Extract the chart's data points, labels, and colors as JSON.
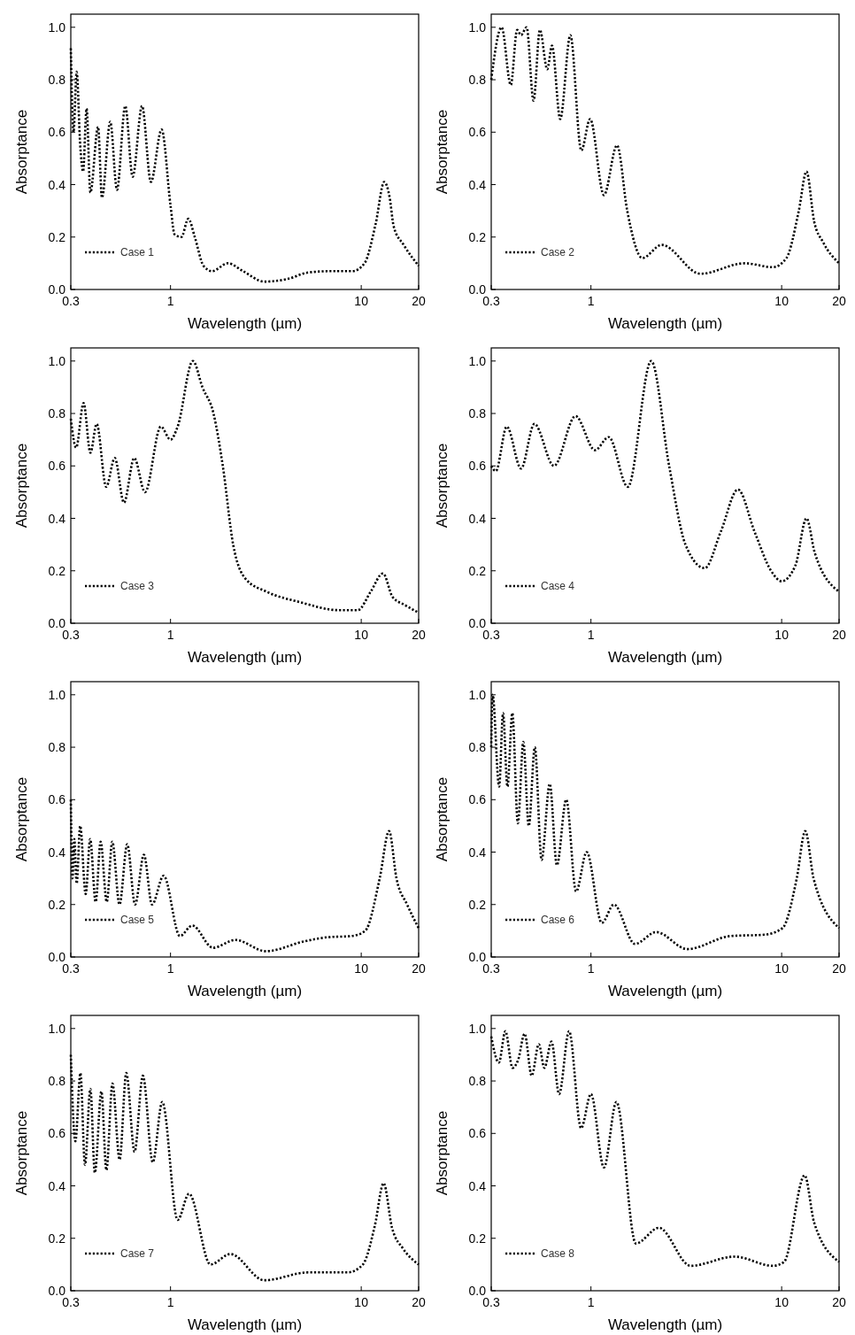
{
  "chart_data": [
    {
      "type": "line",
      "xlabel": "Wavelength (µm)",
      "ylabel": "Absorptance",
      "log": "x",
      "legend": "bottom left",
      "line_style": "dotted",
      "xlim": [
        0.3,
        20
      ],
      "ylim": [
        0,
        1.05
      ],
      "xticks": [
        0.3,
        1,
        10,
        20
      ],
      "yticks": [
        {
          "value": 0,
          "label": "0.0"
        },
        {
          "value": 0.2,
          "label": "0.2"
        },
        {
          "value": 0.4,
          "label": "0.4"
        },
        {
          "value": 0.6,
          "label": "0.6"
        },
        {
          "value": 0.8,
          "label": "0.8"
        },
        {
          "value": 1,
          "label": "1.0"
        }
      ],
      "x": [
        0.3,
        0.31,
        0.322,
        0.336,
        0.348,
        0.363,
        0.38,
        0.417,
        0.437,
        0.483,
        0.524,
        0.579,
        0.633,
        0.709,
        0.789,
        0.898,
        1.0,
        1.05,
        1.14,
        1.24,
        1.34,
        1.49,
        1.65,
        2.0,
        2.4,
        3.1,
        4.1,
        5.3,
        7.0,
        9.0,
        10.4,
        11.9,
        13.2,
        14.1,
        14.8,
        16.7,
        20
      ],
      "series": [
        {
          "name": "Case 1",
          "color": "#000000",
          "values": [
            0.92,
            0.6,
            0.83,
            0.55,
            0.45,
            0.69,
            0.37,
            0.62,
            0.35,
            0.64,
            0.38,
            0.7,
            0.43,
            0.7,
            0.41,
            0.61,
            0.32,
            0.21,
            0.2,
            0.27,
            0.2,
            0.09,
            0.07,
            0.1,
            0.07,
            0.03,
            0.04,
            0.065,
            0.07,
            0.07,
            0.1,
            0.25,
            0.41,
            0.35,
            0.24,
            0.17,
            0.09
          ]
        }
      ]
    },
    {
      "type": "line",
      "xlabel": "Wavelength (µm)",
      "ylabel": "Absorptance",
      "log": "x",
      "legend": "bottom left",
      "line_style": "dotted",
      "xlim": [
        0.3,
        20
      ],
      "ylim": [
        0,
        1.05
      ],
      "xticks": [
        0.3,
        1,
        10,
        20
      ],
      "yticks": [
        {
          "value": 0,
          "label": "0.0"
        },
        {
          "value": 0.2,
          "label": "0.2"
        },
        {
          "value": 0.4,
          "label": "0.4"
        },
        {
          "value": 0.6,
          "label": "0.6"
        },
        {
          "value": 0.8,
          "label": "0.8"
        },
        {
          "value": 1,
          "label": "1.0"
        }
      ],
      "x": [
        0.3,
        0.34,
        0.38,
        0.41,
        0.43,
        0.46,
        0.5,
        0.54,
        0.59,
        0.625,
        0.69,
        0.78,
        0.89,
        0.99,
        1.17,
        1.37,
        1.55,
        1.86,
        2.35,
        3.75,
        6.4,
        9.0,
        10.6,
        12.3,
        13.5,
        14.8,
        16.5,
        20
      ],
      "series": [
        {
          "name": "Case 2",
          "color": "#000000",
          "values": [
            0.8,
            1.0,
            0.78,
            0.99,
            0.97,
            1.0,
            0.72,
            0.99,
            0.84,
            0.93,
            0.65,
            0.97,
            0.53,
            0.65,
            0.36,
            0.55,
            0.3,
            0.12,
            0.17,
            0.06,
            0.1,
            0.085,
            0.12,
            0.3,
            0.45,
            0.26,
            0.18,
            0.1
          ]
        }
      ]
    },
    {
      "type": "line",
      "xlabel": "Wavelength (µm)",
      "ylabel": "Absorptance",
      "log": "x",
      "legend": "bottom left",
      "line_style": "dotted",
      "xlim": [
        0.3,
        20
      ],
      "ylim": [
        0,
        1.05
      ],
      "xticks": [
        0.3,
        1,
        10,
        20
      ],
      "yticks": [
        {
          "value": 0,
          "label": "0.0"
        },
        {
          "value": 0.2,
          "label": "0.2"
        },
        {
          "value": 0.4,
          "label": "0.4"
        },
        {
          "value": 0.6,
          "label": "0.6"
        },
        {
          "value": 0.8,
          "label": "0.8"
        },
        {
          "value": 1,
          "label": "1.0"
        }
      ],
      "x": [
        0.3,
        0.32,
        0.35,
        0.38,
        0.41,
        0.46,
        0.51,
        0.57,
        0.645,
        0.735,
        0.89,
        1.0,
        1.09,
        1.31,
        1.47,
        1.68,
        1.88,
        2.13,
        2.47,
        3.2,
        4.8,
        7.6,
        9.6,
        11.2,
        13.0,
        14.6,
        16.9,
        20
      ],
      "series": [
        {
          "name": "Case 3",
          "color": "#000000",
          "values": [
            0.78,
            0.67,
            0.84,
            0.65,
            0.76,
            0.52,
            0.63,
            0.46,
            0.63,
            0.5,
            0.75,
            0.7,
            0.75,
            1.0,
            0.9,
            0.8,
            0.6,
            0.3,
            0.17,
            0.12,
            0.08,
            0.05,
            0.05,
            0.12,
            0.19,
            0.1,
            0.07,
            0.04
          ]
        }
      ]
    },
    {
      "type": "line",
      "xlabel": "Wavelength (µm)",
      "ylabel": "Absorptance",
      "log": "x",
      "legend": "bottom left",
      "line_style": "dotted",
      "xlim": [
        0.3,
        20
      ],
      "ylim": [
        0,
        1.05
      ],
      "xticks": [
        0.3,
        1,
        10,
        20
      ],
      "yticks": [
        {
          "value": 0,
          "label": "0.0"
        },
        {
          "value": 0.2,
          "label": "0.2"
        },
        {
          "value": 0.4,
          "label": "0.4"
        },
        {
          "value": 0.6,
          "label": "0.6"
        },
        {
          "value": 0.8,
          "label": "0.8"
        },
        {
          "value": 1,
          "label": "1.0"
        }
      ],
      "x": [
        0.3,
        0.317,
        0.362,
        0.43,
        0.505,
        0.64,
        0.83,
        1.05,
        1.24,
        1.56,
        2.07,
        2.57,
        3.13,
        3.95,
        4.8,
        5.9,
        7.2,
        8.8,
        10,
        11.8,
        13.5,
        14.9,
        20
      ],
      "series": [
        {
          "name": "Case 4",
          "color": "#000000",
          "values": [
            0.6,
            0.58,
            0.75,
            0.59,
            0.76,
            0.6,
            0.79,
            0.66,
            0.71,
            0.52,
            1.0,
            0.6,
            0.3,
            0.21,
            0.35,
            0.51,
            0.35,
            0.2,
            0.16,
            0.22,
            0.4,
            0.27,
            0.12
          ]
        }
      ]
    },
    {
      "type": "line",
      "xlabel": "Wavelength (µm)",
      "ylabel": "Absorptance",
      "log": "x",
      "legend": "bottom left",
      "line_style": "dotted",
      "xlim": [
        0.3,
        20
      ],
      "ylim": [
        0,
        1.05
      ],
      "xticks": [
        0.3,
        1,
        10,
        20
      ],
      "yticks": [
        {
          "value": 0,
          "label": "0.0"
        },
        {
          "value": 0.2,
          "label": "0.2"
        },
        {
          "value": 0.4,
          "label": "0.4"
        },
        {
          "value": 0.6,
          "label": "0.6"
        },
        {
          "value": 0.8,
          "label": "0.8"
        },
        {
          "value": 1,
          "label": "1.0"
        }
      ],
      "x": [
        0.3,
        0.306,
        0.313,
        0.322,
        0.336,
        0.359,
        0.379,
        0.405,
        0.43,
        0.463,
        0.495,
        0.54,
        0.593,
        0.652,
        0.725,
        0.8,
        0.92,
        1.12,
        1.3,
        1.67,
        2.19,
        3.16,
        5.05,
        6.6,
        8.9,
        10.5,
        12.5,
        14,
        15.3,
        17.4,
        20
      ],
      "series": [
        {
          "name": "Case 5",
          "color": "#000000",
          "values": [
            0.6,
            0.3,
            0.45,
            0.28,
            0.5,
            0.24,
            0.45,
            0.21,
            0.44,
            0.21,
            0.44,
            0.2,
            0.43,
            0.2,
            0.39,
            0.2,
            0.31,
            0.08,
            0.12,
            0.035,
            0.065,
            0.022,
            0.06,
            0.075,
            0.08,
            0.1,
            0.3,
            0.48,
            0.3,
            0.2,
            0.11
          ]
        }
      ]
    },
    {
      "type": "line",
      "xlabel": "Wavelength (µm)",
      "ylabel": "Absorptance",
      "log": "x",
      "legend": "bottom left",
      "line_style": "dotted",
      "xlim": [
        0.3,
        20
      ],
      "ylim": [
        0,
        1.05
      ],
      "xticks": [
        0.3,
        1,
        10,
        20
      ],
      "yticks": [
        {
          "value": 0,
          "label": "0.0"
        },
        {
          "value": 0.2,
          "label": "0.2"
        },
        {
          "value": 0.4,
          "label": "0.4"
        },
        {
          "value": 0.6,
          "label": "0.6"
        },
        {
          "value": 0.8,
          "label": "0.8"
        },
        {
          "value": 1,
          "label": "1.0"
        }
      ],
      "x": [
        0.3,
        0.305,
        0.33,
        0.346,
        0.365,
        0.387,
        0.414,
        0.442,
        0.472,
        0.508,
        0.551,
        0.608,
        0.663,
        0.742,
        0.836,
        0.95,
        1.14,
        1.32,
        1.7,
        2.2,
        3.2,
        5.4,
        8.1,
        10.1,
        12.0,
        13.3,
        14.7,
        20
      ],
      "series": [
        {
          "name": "Case 6",
          "color": "#000000",
          "values": [
            0.8,
            1.0,
            0.65,
            0.93,
            0.65,
            0.93,
            0.51,
            0.82,
            0.5,
            0.8,
            0.37,
            0.66,
            0.35,
            0.6,
            0.25,
            0.4,
            0.13,
            0.2,
            0.05,
            0.095,
            0.03,
            0.08,
            0.085,
            0.11,
            0.3,
            0.48,
            0.3,
            0.11
          ]
        }
      ]
    },
    {
      "type": "line",
      "xlabel": "Wavelength (µm)",
      "ylabel": "Absorptance",
      "log": "x",
      "legend": "bottom left",
      "line_style": "dotted",
      "xlim": [
        0.3,
        20
      ],
      "ylim": [
        0,
        1.05
      ],
      "xticks": [
        0.3,
        1,
        10,
        20
      ],
      "yticks": [
        {
          "value": 0,
          "label": "0.0"
        },
        {
          "value": 0.2,
          "label": "0.2"
        },
        {
          "value": 0.4,
          "label": "0.4"
        },
        {
          "value": 0.6,
          "label": "0.6"
        },
        {
          "value": 0.8,
          "label": "0.8"
        },
        {
          "value": 1,
          "label": "1.0"
        }
      ],
      "x": [
        0.3,
        0.317,
        0.337,
        0.356,
        0.38,
        0.401,
        0.434,
        0.461,
        0.496,
        0.541,
        0.586,
        0.648,
        0.716,
        0.807,
        0.905,
        1.09,
        1.25,
        1.62,
        2.06,
        3.1,
        5.3,
        8.5,
        10.2,
        11.8,
        13.1,
        14.5,
        16.6,
        20
      ],
      "series": [
        {
          "name": "Case 7",
          "color": "#000000",
          "values": [
            0.9,
            0.57,
            0.83,
            0.48,
            0.77,
            0.45,
            0.76,
            0.46,
            0.79,
            0.5,
            0.83,
            0.53,
            0.82,
            0.49,
            0.72,
            0.27,
            0.37,
            0.1,
            0.14,
            0.04,
            0.07,
            0.07,
            0.1,
            0.25,
            0.41,
            0.24,
            0.16,
            0.1
          ]
        }
      ]
    },
    {
      "type": "line",
      "xlabel": "Wavelength (µm)",
      "ylabel": "Absorptance",
      "log": "x",
      "legend": "bottom left",
      "line_style": "dotted",
      "xlim": [
        0.3,
        20
      ],
      "ylim": [
        0,
        1.05
      ],
      "xticks": [
        0.3,
        1,
        10,
        20
      ],
      "yticks": [
        {
          "value": 0,
          "label": "0.0"
        },
        {
          "value": 0.2,
          "label": "0.2"
        },
        {
          "value": 0.4,
          "label": "0.4"
        },
        {
          "value": 0.6,
          "label": "0.6"
        },
        {
          "value": 0.8,
          "label": "0.8"
        },
        {
          "value": 1,
          "label": "1.0"
        }
      ],
      "x": [
        0.3,
        0.329,
        0.356,
        0.388,
        0.415,
        0.449,
        0.489,
        0.533,
        0.57,
        0.621,
        0.681,
        0.768,
        0.888,
        1.0,
        1.17,
        1.36,
        1.72,
        2.27,
        3.33,
        5.66,
        9.0,
        10.3,
        13.2,
        14.8,
        20
      ],
      "series": [
        {
          "name": "Case 8",
          "color": "#000000",
          "values": [
            0.97,
            0.87,
            0.99,
            0.85,
            0.88,
            0.98,
            0.82,
            0.94,
            0.85,
            0.95,
            0.75,
            0.99,
            0.62,
            0.75,
            0.47,
            0.72,
            0.18,
            0.24,
            0.095,
            0.13,
            0.095,
            0.11,
            0.44,
            0.26,
            0.11
          ]
        }
      ]
    }
  ]
}
